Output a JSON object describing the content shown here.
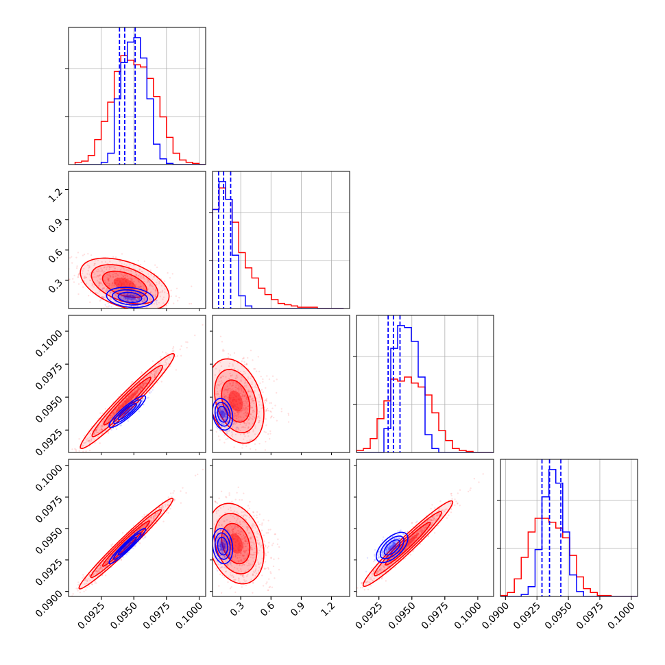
{
  "chart_data": {
    "type": "corner",
    "title": "",
    "series": [
      {
        "name": "",
        "color": "#ff0000"
      },
      {
        "name": "",
        "color": "#0000ff"
      }
    ],
    "variables": [
      {
        "range": [
          0.09,
          0.1005
        ],
        "ticks": [
          "0.0925",
          "0.0950",
          "0.0975",
          "0.1000"
        ],
        "tick_values": [
          0.0925,
          0.095,
          0.0975,
          0.1
        ]
      },
      {
        "range": [
          0.02,
          1.38
        ],
        "ticks": [
          "0.3",
          "0.6",
          "0.9",
          "1.2"
        ],
        "tick_values": [
          0.3,
          0.6,
          0.9,
          1.2
        ]
      },
      {
        "range": [
          0.0908,
          0.1012
        ],
        "ticks": [
          "0.0925",
          "0.0950",
          "0.0975",
          "0.1000"
        ],
        "tick_values": [
          0.0925,
          0.095,
          0.0975,
          0.1
        ]
      },
      {
        "range": [
          0.0896,
          0.1005
        ],
        "ticks": [
          "0.0900",
          "0.0925",
          "0.0950",
          "0.0975",
          "0.1000"
        ],
        "tick_values": [
          0.09,
          0.0925,
          0.095,
          0.0975,
          0.1
        ]
      }
    ],
    "marginals": [
      {
        "red": {
          "edges_start": 0.0905,
          "bin_width": 0.0005,
          "counts": [
            2,
            3,
            8,
            22,
            38,
            55,
            82,
            96,
            92,
            88,
            86,
            76,
            60,
            42,
            24,
            10,
            4,
            2,
            1,
            0
          ]
        },
        "blue": {
          "edges_start": 0.0905,
          "bin_width": 0.0005,
          "counts": [
            0,
            0,
            0,
            0,
            2,
            10,
            58,
            90,
            108,
            112,
            94,
            58,
            18,
            5,
            1,
            0,
            0,
            0,
            0,
            0
          ]
        },
        "quantile_lines": [
          0.0939,
          0.0943,
          0.0951
        ]
      },
      {
        "red": {
          "edges_start": 0.02,
          "bin_width": 0.065,
          "counts": [
            78,
            95,
            86,
            68,
            44,
            32,
            24,
            16,
            11,
            7,
            4,
            3,
            2,
            1,
            1,
            1,
            0,
            0,
            0,
            0
          ]
        },
        "blue": {
          "edges_start": 0.02,
          "bin_width": 0.065,
          "counts": [
            78,
            100,
            86,
            42,
            10,
            2,
            0,
            0,
            0,
            0,
            0,
            0,
            0,
            0,
            0,
            0,
            0,
            0,
            0,
            0
          ]
        },
        "quantile_lines": [
          0.08,
          0.13,
          0.2
        ]
      },
      {
        "red": {
          "edges_start": 0.0908,
          "bin_width": 0.00052,
          "counts": [
            2,
            4,
            14,
            34,
            52,
            74,
            72,
            76,
            70,
            66,
            58,
            40,
            22,
            12,
            4,
            2,
            1,
            0,
            0,
            0
          ]
        },
        "blue": {
          "edges_start": 0.0908,
          "bin_width": 0.00052,
          "counts": [
            0,
            0,
            0,
            0,
            24,
            105,
            128,
            126,
            112,
            76,
            18,
            4,
            0,
            0,
            0,
            0,
            0,
            0,
            0,
            0
          ]
        },
        "quantile_lines": [
          0.0932,
          0.0936,
          0.0941
        ]
      },
      {
        "red": {
          "edges_start": 0.0896,
          "bin_width": 0.00055,
          "counts": [
            1,
            4,
            18,
            40,
            66,
            80,
            80,
            76,
            70,
            60,
            42,
            20,
            8,
            4,
            1,
            1,
            0,
            0,
            0,
            0
          ]
        },
        "blue": {
          "edges_start": 0.0896,
          "bin_width": 0.00055,
          "counts": [
            0,
            0,
            0,
            2,
            10,
            48,
            102,
            130,
            116,
            66,
            22,
            5,
            0,
            0,
            0,
            0,
            0,
            0,
            0,
            0
          ]
        },
        "quantile_lines": [
          0.0929,
          0.0935,
          0.0944
        ]
      }
    ],
    "joint": [
      {
        "x": 0,
        "y": 1,
        "red": {
          "mean": [
            0.0943,
            0.26
          ],
          "sd": [
            0.0017,
            0.13
          ],
          "rho": -0.45
        },
        "blue": {
          "mean": [
            0.0947,
            0.13
          ],
          "sd": [
            0.0009,
            0.05
          ],
          "rho": -0.2
        }
      },
      {
        "x": 0,
        "y": 2,
        "red": {
          "mean": [
            0.0945,
            0.0947
          ],
          "sd": [
            0.0018,
            0.0018
          ],
          "rho": 0.97
        },
        "blue": {
          "mean": [
            0.0945,
            0.0939
          ],
          "sd": [
            0.0007,
            0.0006
          ],
          "rho": 0.9
        }
      },
      {
        "x": 1,
        "y": 2,
        "red": {
          "mean": [
            0.25,
            0.0947
          ],
          "sd": [
            0.14,
            0.0016
          ],
          "rho": -0.3
        },
        "blue": {
          "mean": [
            0.12,
            0.0937
          ],
          "sd": [
            0.05,
            0.0006
          ],
          "rho": -0.2
        }
      },
      {
        "x": 0,
        "y": 3,
        "red": {
          "mean": [
            0.0944,
            0.0938
          ],
          "sd": [
            0.0018,
            0.0018
          ],
          "rho": 0.98
        },
        "blue": {
          "mean": [
            0.0945,
            0.0936
          ],
          "sd": [
            0.0007,
            0.0007
          ],
          "rho": 0.95
        }
      },
      {
        "x": 1,
        "y": 3,
        "red": {
          "mean": [
            0.25,
            0.0938
          ],
          "sd": [
            0.14,
            0.0016
          ],
          "rho": -0.25
        },
        "blue": {
          "mean": [
            0.12,
            0.0936
          ],
          "sd": [
            0.05,
            0.0007
          ],
          "rho": -0.15
        }
      },
      {
        "x": 2,
        "y": 3,
        "red": {
          "mean": [
            0.0947,
            0.0938
          ],
          "sd": [
            0.0017,
            0.0017
          ],
          "rho": 0.97
        },
        "blue": {
          "mean": [
            0.0935,
            0.0935
          ],
          "sd": [
            0.0006,
            0.0006
          ],
          "rho": 0.6
        }
      }
    ],
    "xlabel": "",
    "ylabel": "",
    "grid": true,
    "legend": "none"
  }
}
